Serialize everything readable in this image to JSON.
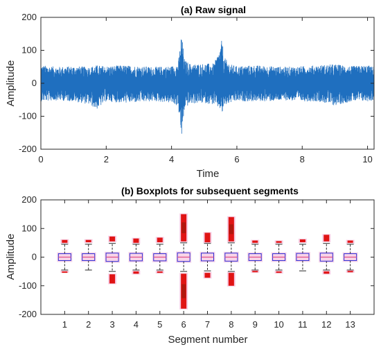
{
  "chart_data": [
    {
      "type": "line",
      "title": "(a) Raw signal",
      "xlabel": "Time",
      "ylabel": "Amplitude",
      "xlim": [
        0,
        10.2
      ],
      "ylim": [
        -200,
        200
      ],
      "xticks": [
        0,
        2,
        4,
        6,
        8,
        10
      ],
      "yticks": [
        -200,
        -100,
        0,
        100,
        200
      ],
      "grid": false,
      "color": "#1f6fbf",
      "series": [
        {
          "x": [
            0.0,
            0.5,
            1.0,
            1.5,
            1.7,
            2.0,
            2.5,
            3.0,
            3.5,
            4.0,
            4.2,
            4.25,
            4.3,
            4.35,
            4.4,
            4.6,
            5.0,
            5.3,
            5.5,
            5.55,
            5.6,
            5.8,
            6.0,
            6.5,
            7.0,
            7.5,
            8.0,
            8.5,
            9.0,
            9.5,
            10.0,
            10.2
          ],
          "upper": [
            55,
            50,
            52,
            50,
            55,
            52,
            55,
            52,
            50,
            52,
            60,
            100,
            150,
            120,
            70,
            58,
            60,
            60,
            110,
            140,
            80,
            58,
            52,
            55,
            52,
            50,
            52,
            55,
            58,
            52,
            55,
            50
          ],
          "lower": [
            -55,
            -52,
            -55,
            -65,
            -80,
            -55,
            -60,
            -58,
            -55,
            -60,
            -70,
            -110,
            -175,
            -130,
            -75,
            -62,
            -60,
            -65,
            -80,
            -95,
            -70,
            -60,
            -55,
            -55,
            -55,
            -52,
            -55,
            -55,
            -68,
            -55,
            -55,
            -52
          ]
        }
      ]
    },
    {
      "type": "boxplot",
      "title": "(b) Boxplots for subsequent segments",
      "xlabel": "Segment number",
      "ylabel": "Amplitude",
      "ylim": [
        -200,
        200
      ],
      "yticks": [
        -200,
        -100,
        0,
        100,
        200
      ],
      "categories": [
        "1",
        "2",
        "3",
        "4",
        "5",
        "6",
        "7",
        "8",
        "9",
        "10",
        "11",
        "12",
        "13"
      ],
      "box_color": "#2b2bd6",
      "median_color": "#e0508a",
      "outlier_color": "#e01414",
      "boxes": [
        {
          "q1": -12,
          "median": 0,
          "q3": 12,
          "wl": -45,
          "wh": 45,
          "outliers_high": [
            50,
            60
          ],
          "outliers_low": [
            -50,
            -52
          ]
        },
        {
          "q1": -12,
          "median": 0,
          "q3": 12,
          "wl": -45,
          "wh": 45,
          "outliers_high": [
            52,
            60
          ],
          "outliers_low": []
        },
        {
          "q1": -15,
          "median": 0,
          "q3": 14,
          "wl": -50,
          "wh": 48,
          "outliers_high": [
            55,
            72
          ],
          "outliers_low": [
            -60,
            -92
          ]
        },
        {
          "q1": -13,
          "median": 0,
          "q3": 13,
          "wl": -45,
          "wh": 45,
          "outliers_high": [
            50,
            65
          ],
          "outliers_low": [
            -50,
            -58
          ]
        },
        {
          "q1": -13,
          "median": 0,
          "q3": 12,
          "wl": -45,
          "wh": 45,
          "outliers_high": [
            52,
            68
          ],
          "outliers_low": [
            -50,
            -55
          ]
        },
        {
          "q1": -15,
          "median": 0,
          "q3": 15,
          "wl": -50,
          "wh": 50,
          "outliers_high": [
            55,
            150
          ],
          "outliers_low": [
            -58,
            -180
          ]
        },
        {
          "q1": -13,
          "median": 0,
          "q3": 14,
          "wl": -48,
          "wh": 48,
          "outliers_high": [
            52,
            85
          ],
          "outliers_low": [
            -55,
            -72
          ]
        },
        {
          "q1": -14,
          "median": 0,
          "q3": 14,
          "wl": -50,
          "wh": 50,
          "outliers_high": [
            55,
            140
          ],
          "outliers_low": [
            -55,
            -100
          ]
        },
        {
          "q1": -12,
          "median": 0,
          "q3": 12,
          "wl": -45,
          "wh": 45,
          "outliers_high": [
            50,
            58
          ],
          "outliers_low": [
            -48,
            -52
          ]
        },
        {
          "q1": -12,
          "median": 0,
          "q3": 12,
          "wl": -45,
          "wh": 45,
          "outliers_high": [
            50,
            56
          ],
          "outliers_low": [
            -50,
            -55
          ]
        },
        {
          "q1": -12,
          "median": 0,
          "q3": 13,
          "wl": -48,
          "wh": 45,
          "outliers_high": [
            52,
            62
          ],
          "outliers_low": []
        },
        {
          "q1": -14,
          "median": 0,
          "q3": 14,
          "wl": -45,
          "wh": 48,
          "outliers_high": [
            55,
            78
          ],
          "outliers_low": [
            -50,
            -58
          ]
        },
        {
          "q1": -12,
          "median": 0,
          "q3": 12,
          "wl": -45,
          "wh": 45,
          "outliers_high": [
            50,
            58
          ],
          "outliers_low": [
            -48,
            -52
          ]
        }
      ]
    }
  ]
}
